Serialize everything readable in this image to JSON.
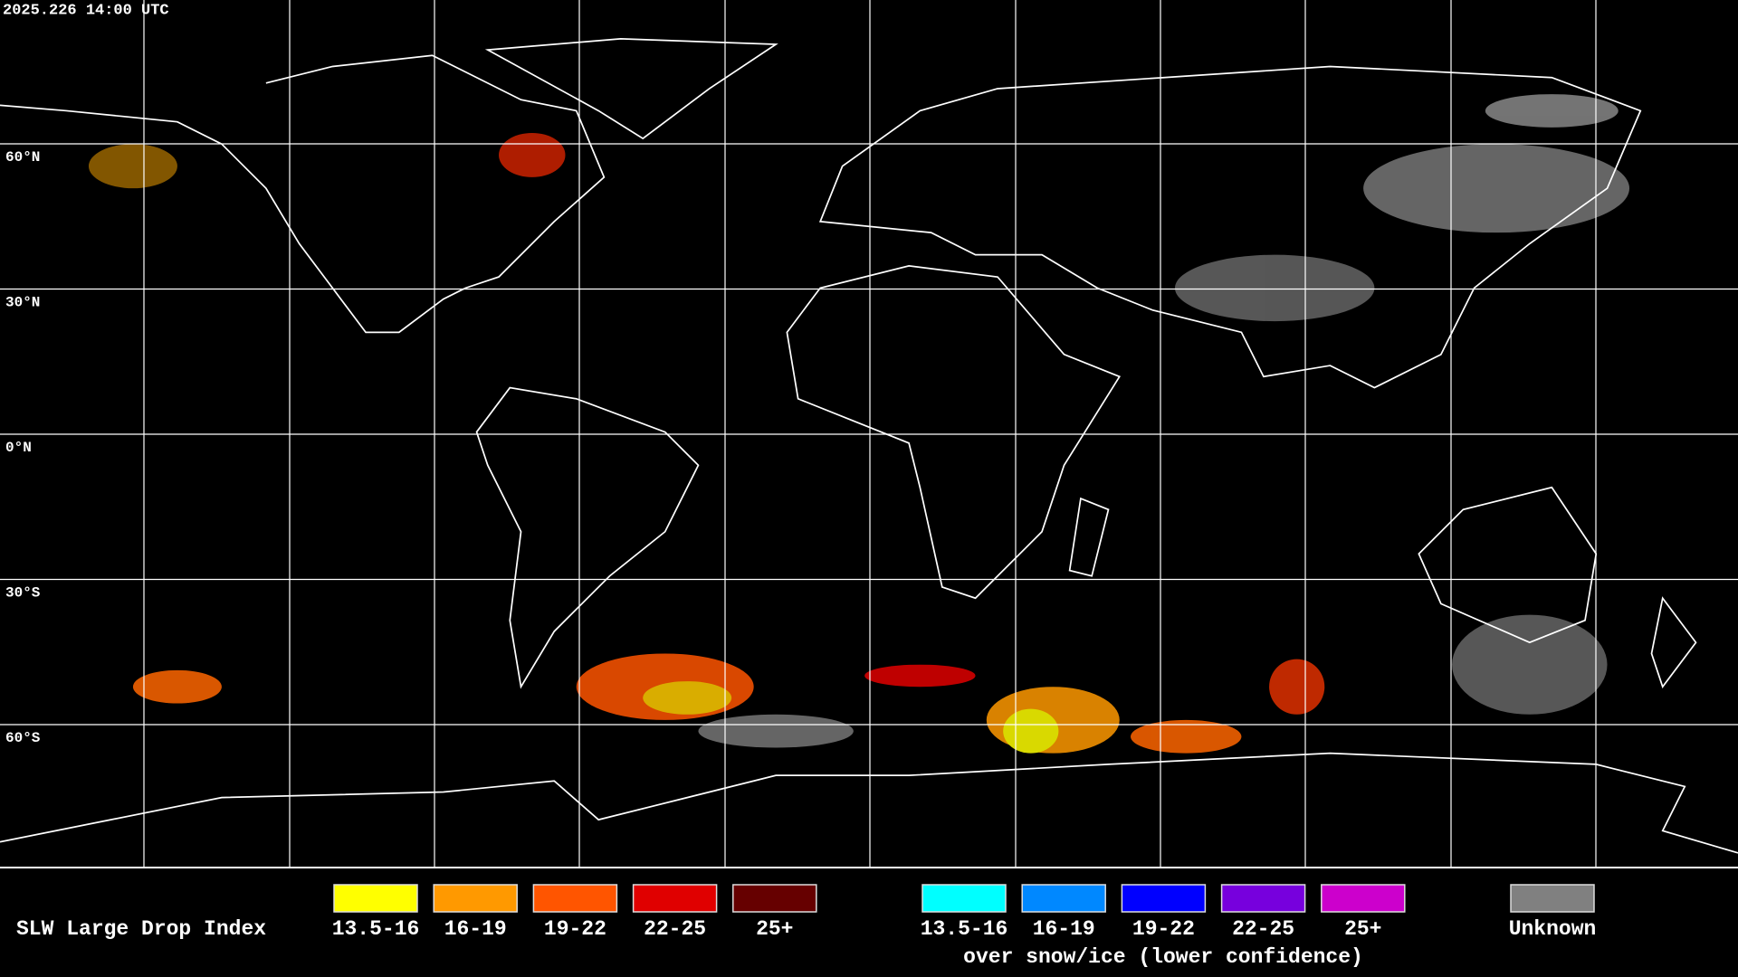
{
  "header": {
    "timestamp": "2025.226 14:00 UTC"
  },
  "map": {
    "lat_labels": [
      "60°N",
      "30°N",
      "0°N",
      "30°S",
      "60°S"
    ]
  },
  "legend": {
    "title": "SLW Large Drop Index",
    "groups": [
      {
        "items": [
          {
            "label": "13.5-16",
            "color": "#ffff00"
          },
          {
            "label": "16-19",
            "color": "#ff9900"
          },
          {
            "label": "19-22",
            "color": "#ff5500"
          },
          {
            "label": "22-25",
            "color": "#e00000"
          },
          {
            "label": "25+",
            "color": "#660000"
          }
        ]
      },
      {
        "items": [
          {
            "label": "13.5-16",
            "color": "#00ffff"
          },
          {
            "label": "16-19",
            "color": "#0088ff"
          },
          {
            "label": "19-22",
            "color": "#0000ff"
          },
          {
            "label": "22-25",
            "color": "#7700dd"
          },
          {
            "label": "25+",
            "color": "#cc00cc"
          }
        ],
        "note": "over snow/ice (lower confidence)"
      },
      {
        "items": [
          {
            "label": "Unknown",
            "color": "#808080"
          }
        ]
      }
    ]
  }
}
